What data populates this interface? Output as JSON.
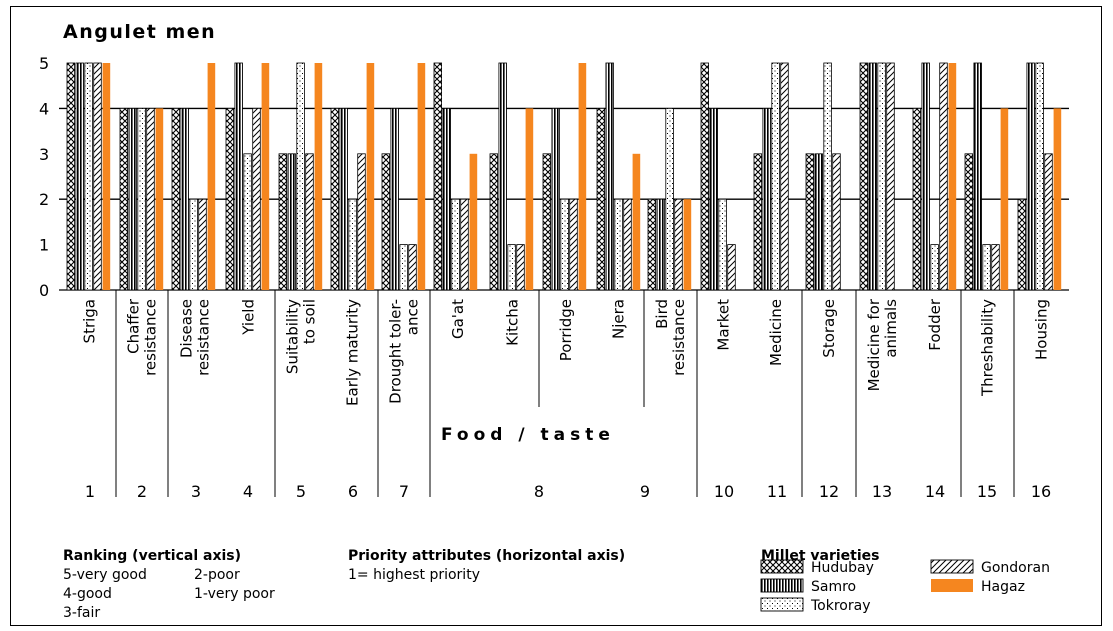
{
  "chart_data": {
    "type": "bar",
    "title": "Angulet men",
    "yticks": [
      "0",
      "1",
      "2",
      "3",
      "4",
      "5"
    ],
    "ylim": [
      0,
      5
    ],
    "grid_lines_at": [
      2,
      4
    ],
    "categories": [
      "Striga",
      "Chaffer resistance",
      "Disease resistance",
      "Yield",
      "Suitability to soil",
      "Early maturity",
      "Drought toler-ance",
      "Ga'at",
      "Kitcha",
      "Porridge",
      "Njera",
      "Bird resistance",
      "Market",
      "Medicine",
      "Storage",
      "Medicine for animals",
      "Fodder",
      "Threshability",
      "Housing"
    ],
    "category_lines": [
      [
        "Striga"
      ],
      [
        "Chaffer",
        "resistance"
      ],
      [
        "Disease",
        "resistance"
      ],
      [
        "Yield"
      ],
      [
        "Suitability",
        "to soil"
      ],
      [
        "Early maturity"
      ],
      [
        "Drought toler-",
        "ance"
      ],
      [
        "Ga'at"
      ],
      [
        "Kitcha"
      ],
      [
        "Porridge"
      ],
      [
        "Njera"
      ],
      [
        "Bird",
        "resistance"
      ],
      [
        "Market"
      ],
      [
        "Medicine"
      ],
      [
        "Storage"
      ],
      [
        "Medicine for",
        "animals"
      ],
      [
        "Fodder"
      ],
      [
        "Threshability"
      ],
      [
        "Housing"
      ]
    ],
    "series": [
      {
        "name": "Hudubay",
        "values": [
          5,
          4,
          4,
          4,
          3,
          4,
          3,
          5,
          3,
          3,
          4,
          2,
          5,
          3,
          3,
          5,
          4,
          3,
          2
        ]
      },
      {
        "name": "Samro",
        "values": [
          5,
          4,
          4,
          5,
          3,
          4,
          4,
          4,
          5,
          4,
          5,
          2,
          4,
          4,
          3,
          5,
          5,
          5,
          5
        ]
      },
      {
        "name": "Tokroray",
        "values": [
          5,
          4,
          2,
          3,
          5,
          2,
          1,
          2,
          1,
          2,
          2,
          4,
          2,
          5,
          5,
          5,
          1,
          1,
          5
        ]
      },
      {
        "name": "Gondoran",
        "values": [
          5,
          4,
          2,
          4,
          3,
          3,
          1,
          2,
          1,
          2,
          2,
          2,
          1,
          5,
          3,
          5,
          5,
          1,
          3
        ]
      },
      {
        "name": "Hagaz",
        "values": [
          5,
          4,
          5,
          5,
          5,
          5,
          5,
          3,
          4,
          5,
          3,
          2,
          null,
          null,
          null,
          null,
          5,
          4,
          4
        ]
      }
    ],
    "group_labels": [
      "1",
      "2",
      "3",
      "4",
      "5",
      "6",
      "7",
      "8",
      "9",
      "10",
      "11",
      "12",
      "13",
      "14",
      "15",
      "16"
    ],
    "food_taste_label": "Food / taste",
    "legend": {
      "ranking_title": "Ranking (vertical axis)",
      "ranking_items": [
        "5-very good",
        "2-poor",
        "4-good",
        "1-very poor",
        "3-fair"
      ],
      "priority_title": "Priority attributes (horizontal axis)",
      "priority_text": "1= highest priority",
      "varieties_title": "Millet varieties"
    },
    "colors": {
      "hagaz": "#f5861f",
      "ink": "#000000"
    }
  }
}
